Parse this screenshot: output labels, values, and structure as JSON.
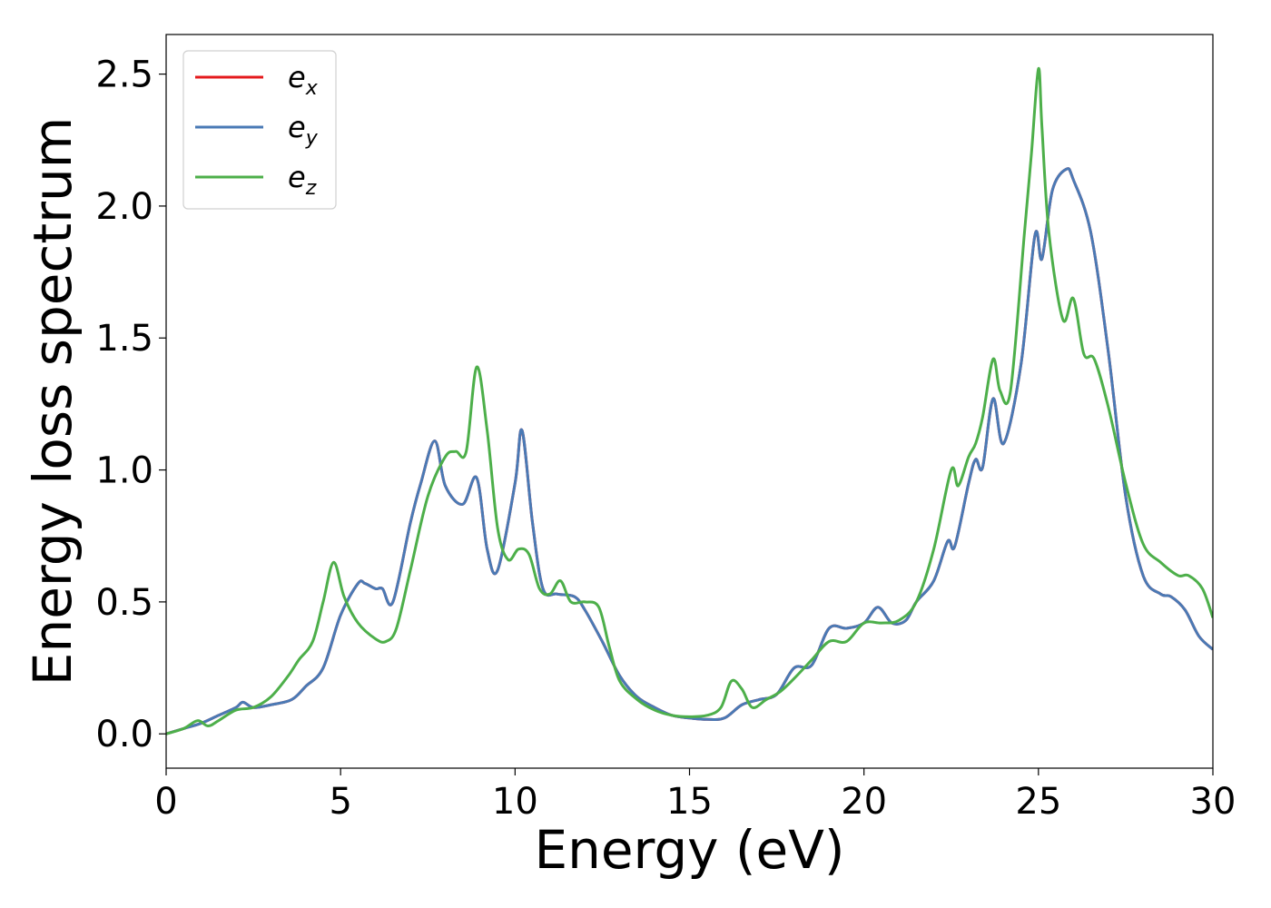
{
  "chart_data": {
    "type": "line",
    "xlabel": "Energy (eV)",
    "ylabel": "Energy loss spectrum",
    "xlim": [
      0,
      30
    ],
    "ylim": [
      -0.13,
      2.65
    ],
    "xticks": [
      0,
      5,
      10,
      15,
      20,
      25,
      30
    ],
    "xtick_labels": [
      "0",
      "5",
      "10",
      "15",
      "20",
      "25",
      "30"
    ],
    "yticks": [
      0.0,
      0.5,
      1.0,
      1.5,
      2.0,
      2.5
    ],
    "ytick_labels": [
      "0.0",
      "0.5",
      "1.0",
      "1.5",
      "2.0",
      "2.5"
    ],
    "grid": false,
    "legend_position": "top-left",
    "series": [
      {
        "name": "e_x",
        "label_base": "e",
        "label_sub": "x",
        "color": "#e41a1c",
        "x": [
          0,
          0.5,
          1,
          1.5,
          2,
          2.2,
          2.5,
          3,
          3.6,
          4,
          4.5,
          5,
          5.5,
          5.7,
          6,
          6.2,
          6.5,
          7,
          7.3,
          7.7,
          8,
          8.5,
          8.9,
          9.2,
          9.5,
          10,
          10.2,
          10.5,
          10.8,
          11.2,
          11.7,
          12,
          12.5,
          13,
          13.5,
          14,
          14.5,
          15,
          15.5,
          16,
          16.5,
          17,
          17.5,
          18,
          18.5,
          19,
          19.5,
          20,
          20.4,
          20.8,
          21.2,
          21.5,
          22,
          22.4,
          22.6,
          23,
          23.2,
          23.4,
          23.7,
          24,
          24.5,
          24.9,
          25.1,
          25.4,
          25.8,
          26,
          26.5,
          27,
          27.5,
          28,
          28.5,
          28.8,
          29.2,
          29.6,
          30
        ],
        "y": [
          0,
          0.02,
          0.04,
          0.07,
          0.1,
          0.12,
          0.1,
          0.11,
          0.13,
          0.18,
          0.25,
          0.45,
          0.57,
          0.57,
          0.55,
          0.55,
          0.5,
          0.8,
          0.95,
          1.11,
          0.94,
          0.87,
          0.97,
          0.7,
          0.62,
          0.95,
          1.15,
          0.8,
          0.55,
          0.53,
          0.52,
          0.47,
          0.35,
          0.22,
          0.14,
          0.1,
          0.07,
          0.06,
          0.055,
          0.06,
          0.11,
          0.13,
          0.15,
          0.25,
          0.26,
          0.4,
          0.4,
          0.42,
          0.48,
          0.42,
          0.43,
          0.5,
          0.58,
          0.73,
          0.71,
          0.95,
          1.04,
          1.01,
          1.27,
          1.1,
          1.4,
          1.89,
          1.8,
          2.06,
          2.14,
          2.1,
          1.9,
          1.45,
          0.9,
          0.6,
          0.53,
          0.52,
          0.47,
          0.37,
          0.32
        ]
      },
      {
        "name": "e_y",
        "label_base": "e",
        "label_sub": "y",
        "color": "#4a7ab5",
        "x": [
          0,
          0.5,
          1,
          1.5,
          2,
          2.2,
          2.5,
          3,
          3.6,
          4,
          4.5,
          5,
          5.5,
          5.7,
          6,
          6.2,
          6.5,
          7,
          7.3,
          7.7,
          8,
          8.5,
          8.9,
          9.2,
          9.5,
          10,
          10.2,
          10.5,
          10.8,
          11.2,
          11.7,
          12,
          12.5,
          13,
          13.5,
          14,
          14.5,
          15,
          15.5,
          16,
          16.5,
          17,
          17.5,
          18,
          18.5,
          19,
          19.5,
          20,
          20.4,
          20.8,
          21.2,
          21.5,
          22,
          22.4,
          22.6,
          23,
          23.2,
          23.4,
          23.7,
          24,
          24.5,
          24.9,
          25.1,
          25.4,
          25.8,
          26,
          26.5,
          27,
          27.5,
          28,
          28.5,
          28.8,
          29.2,
          29.6,
          30
        ],
        "y": [
          0,
          0.02,
          0.04,
          0.07,
          0.1,
          0.12,
          0.1,
          0.11,
          0.13,
          0.18,
          0.25,
          0.45,
          0.57,
          0.57,
          0.55,
          0.55,
          0.5,
          0.8,
          0.95,
          1.11,
          0.94,
          0.87,
          0.97,
          0.7,
          0.62,
          0.95,
          1.15,
          0.8,
          0.55,
          0.53,
          0.52,
          0.47,
          0.35,
          0.22,
          0.14,
          0.1,
          0.07,
          0.06,
          0.055,
          0.06,
          0.11,
          0.13,
          0.15,
          0.25,
          0.26,
          0.4,
          0.4,
          0.42,
          0.48,
          0.42,
          0.43,
          0.5,
          0.58,
          0.73,
          0.71,
          0.95,
          1.04,
          1.01,
          1.27,
          1.1,
          1.4,
          1.89,
          1.8,
          2.06,
          2.14,
          2.1,
          1.9,
          1.45,
          0.9,
          0.6,
          0.53,
          0.52,
          0.47,
          0.37,
          0.32
        ]
      },
      {
        "name": "e_z",
        "label_base": "e",
        "label_sub": "z",
        "color": "#4daf4a",
        "x": [
          0,
          0.5,
          0.9,
          1.2,
          1.5,
          2,
          2.5,
          3,
          3.5,
          3.8,
          4.2,
          4.5,
          4.8,
          5.1,
          5.5,
          6,
          6.3,
          6.6,
          7,
          7.5,
          8,
          8.3,
          8.6,
          8.9,
          9.2,
          9.5,
          9.8,
          10.1,
          10.4,
          10.7,
          11,
          11.3,
          11.6,
          12,
          12.4,
          12.7,
          13,
          13.5,
          14,
          14.5,
          15,
          15.5,
          15.9,
          16.2,
          16.5,
          16.8,
          17.2,
          17.6,
          18,
          18.5,
          19,
          19.5,
          20,
          20.5,
          21,
          21.5,
          22,
          22.5,
          22.7,
          23,
          23.2,
          23.4,
          23.7,
          23.9,
          24.2,
          24.6,
          24.8,
          25,
          25.1,
          25.3,
          25.7,
          26,
          26.3,
          26.6,
          27,
          27.5,
          28,
          28.5,
          29,
          29.3,
          29.7,
          30
        ],
        "y": [
          0,
          0.02,
          0.05,
          0.03,
          0.05,
          0.09,
          0.1,
          0.14,
          0.22,
          0.28,
          0.35,
          0.5,
          0.65,
          0.52,
          0.42,
          0.36,
          0.35,
          0.4,
          0.62,
          0.9,
          1.05,
          1.07,
          1.07,
          1.39,
          1.15,
          0.78,
          0.66,
          0.7,
          0.68,
          0.55,
          0.53,
          0.58,
          0.5,
          0.5,
          0.48,
          0.33,
          0.2,
          0.13,
          0.09,
          0.07,
          0.065,
          0.07,
          0.1,
          0.2,
          0.17,
          0.1,
          0.13,
          0.16,
          0.21,
          0.28,
          0.35,
          0.35,
          0.42,
          0.42,
          0.43,
          0.5,
          0.7,
          1.0,
          0.94,
          1.05,
          1.1,
          1.2,
          1.42,
          1.3,
          1.3,
          1.9,
          2.2,
          2.52,
          2.3,
          1.9,
          1.57,
          1.65,
          1.44,
          1.42,
          1.24,
          0.95,
          0.72,
          0.65,
          0.6,
          0.6,
          0.55,
          0.44
        ]
      }
    ]
  }
}
